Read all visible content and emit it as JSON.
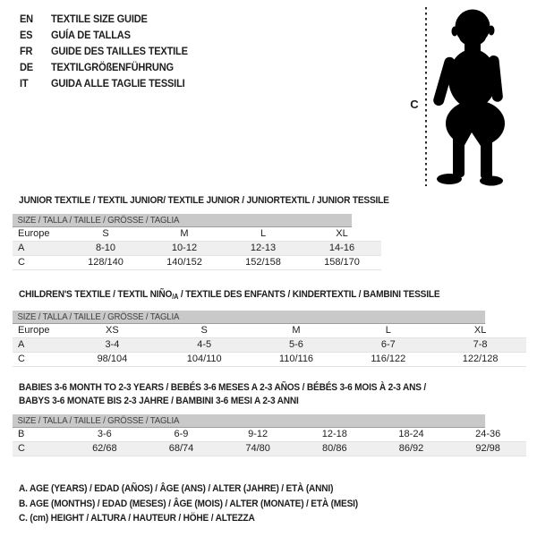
{
  "languages": [
    {
      "code": "EN",
      "title": "TEXTILE SIZE GUIDE"
    },
    {
      "code": "ES",
      "title": "GUÍA DE TALLAS"
    },
    {
      "code": "FR",
      "title": "GUIDE DES TAILLES TEXTILE"
    },
    {
      "code": "DE",
      "title": "TEXTILGRÖßENFÜHRUNG"
    },
    {
      "code": "IT",
      "title": "GUIDA ALLE TAGLIE TESSILI"
    }
  ],
  "figure": {
    "measure_label": "C",
    "illustration": "toddler-silhouette"
  },
  "tables": [
    {
      "title": "JUNIOR TEXTILE / TEXTIL JUNIOR/ TEXTILE JUNIOR / JUNIORTEXTIL / JUNIOR TESSILE",
      "size_header": "SIZE / TALLA / TAILLE / GRÖSSE / TAGLIA",
      "rows": [
        [
          "Europe",
          "S",
          "M",
          "L",
          "XL"
        ],
        [
          "A",
          "8-10",
          "10-12",
          "12-13",
          "14-16"
        ],
        [
          "C",
          "128/140",
          "140/152",
          "152/158",
          "158/170"
        ]
      ]
    },
    {
      "title_pre": "CHILDREN'S TEXTILE / TEXTIL NIÑO",
      "title_sub": "/A",
      "title_post": " / TEXTILE DES ENFANTS / KINDERTEXTIL / BAMBINI TESSILE",
      "size_header": "SIZE / TALLA / TAILLE / GRÖSSE / TAGLIA",
      "rows": [
        [
          "Europe",
          "XS",
          "S",
          "M",
          "L",
          "XL"
        ],
        [
          "A",
          "3-4",
          "4-5",
          "5-6",
          "6-7",
          "7-8"
        ],
        [
          "C",
          "98/104",
          "104/110",
          "110/116",
          "116/122",
          "122/128"
        ]
      ]
    },
    {
      "title_line1": "BABIES 3-6 MONTH TO 2-3 YEARS / BEBÉS 3-6 MESES A 2-3 AÑOS / BÉBÉS 3-6 MOIS À 2-3 ANS /",
      "title_line2": "BABYS 3-6 MONATE BIS 2-3 JAHRE / BAMBINI 3-6 MESI A 2-3 ANNI",
      "size_header": "SIZE / TALLA / TAILLE / GRÖSSE / TAGLIA",
      "rows": [
        [
          "B",
          "3-6",
          "6-9",
          "9-12",
          "12-18",
          "18-24",
          "24-36"
        ],
        [
          "C",
          "62/68",
          "68/74",
          "74/80",
          "80/86",
          "86/92",
          "92/98"
        ]
      ]
    }
  ],
  "notes": [
    "A. AGE (YEARS) / EDAD (AÑOS) / ÂGE (ANS) / ALTER (JAHRE) / ETÀ (ANNI)",
    "B. AGE (MONTHS) / EDAD (MESES) / ÂGE (MOIS) / ALTER (MONATE) / ETÀ (MESI)",
    "C. (cm) HEIGHT / ALTURA / HAUTEUR / HÖHE / ALTEZZA"
  ],
  "colors": {
    "header_bar": "#c9c9c9",
    "row_stripe": "#efefef",
    "silhouette": "#000000",
    "text": "#1d1d1d"
  }
}
